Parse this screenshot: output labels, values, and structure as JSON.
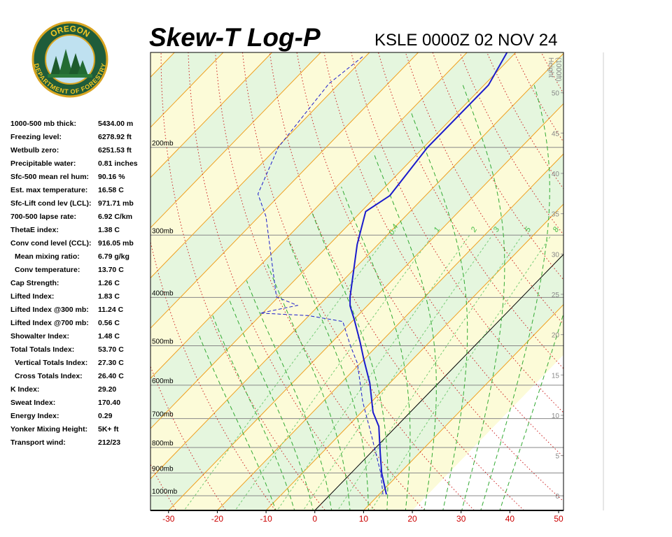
{
  "logo": {
    "top": "OREGON",
    "bottom": "DEPARTMENT OF FORESTRY"
  },
  "table": {
    "rows": [
      [
        "1000-500 mb thick:",
        "5434.00 m"
      ],
      [
        "Freezing level:",
        "6278.92 ft"
      ],
      [
        "Wetbulb zero:",
        "6251.53 ft"
      ],
      [
        "Precipitable water:",
        "0.81 inches"
      ],
      [
        "Sfc-500 mean rel hum:",
        "90.16 %"
      ],
      [
        "Est. max temperature:",
        "16.58 C"
      ],
      [
        "Sfc-Lift cond lev (LCL):",
        "971.71 mb"
      ],
      [
        "700-500 lapse rate:",
        "6.92 C/km"
      ],
      [
        "ThetaE index:",
        "1.38 C"
      ],
      [
        "Conv cond level (CCL):",
        "916.05 mb"
      ],
      [
        "Mean mixing ratio:",
        "6.79 g/kg"
      ],
      [
        "Conv temperature:",
        "13.70 C"
      ],
      [
        "Cap Strength:",
        "1.26 C"
      ],
      [
        "Lifted Index:",
        "1.83 C"
      ],
      [
        "Lifted Index @300 mb:",
        "11.24 C"
      ],
      [
        "Lifted Index @700 mb:",
        "0.56 C"
      ],
      [
        "Showalter Index:",
        "1.48 C"
      ],
      [
        "Total Totals Index:",
        "53.70 C"
      ],
      [
        "Vertical Totals Index:",
        "27.30 C"
      ],
      [
        "Cross Totals Index:",
        "26.40 C"
      ],
      [
        "K Index:",
        "29.20"
      ],
      [
        "Sweat Index:",
        "170.40"
      ],
      [
        "Energy Index:",
        "0.29"
      ],
      [
        "Yonker Mixing Height:",
        "5K+ ft"
      ],
      [
        "Transport wind:",
        "212/23"
      ]
    ]
  },
  "chart_data": {
    "type": "skew-t",
    "title": "Skew-T Log-P",
    "subtitle": "KSLE 0000Z 02 NOV 24",
    "xlim": [
      -33.7,
      51
    ],
    "xticks": [
      -30,
      -20,
      -10,
      0,
      10,
      20,
      30,
      40,
      50
    ],
    "ylim": [
      1070,
      129
    ],
    "log_y": true,
    "yticks": [
      {
        "value": 1000,
        "label": "1000mb"
      },
      {
        "value": 900,
        "label": "900mb"
      },
      {
        "value": 800,
        "label": "800mb"
      },
      {
        "value": 700,
        "label": "700mb"
      },
      {
        "value": 600,
        "label": "600mb"
      },
      {
        "value": 500,
        "label": "500mb"
      },
      {
        "value": 400,
        "label": "400mb"
      },
      {
        "value": 300,
        "label": "300mb"
      },
      {
        "value": 200,
        "label": "200mb"
      }
    ],
    "y2label": [
      "Height",
      "(1000ft)"
    ],
    "y2lim": [
      -1.8,
      55
    ],
    "y2ticks": [
      0,
      5,
      10,
      15,
      20,
      25,
      30,
      35,
      40,
      45,
      50
    ],
    "mixing_ratio_labels": [
      0.4,
      1,
      2,
      3,
      5,
      8
    ],
    "series": [
      {
        "color": "#1a1acc",
        "dash": false,
        "pressure": [
          994,
          899,
          821,
          726,
          680,
          594,
          534,
          492,
          444,
          416,
          399,
          313,
          269,
          250,
          200,
          150,
          129
        ],
        "values": [
          11.5,
          6.2,
          2.0,
          -3.6,
          -7.6,
          -14.1,
          -19.9,
          -24.2,
          -29.8,
          -33.5,
          -35.3,
          -44.3,
          -49.1,
          -47.3,
          -49.2,
          -49.1,
          -51.8
        ]
      },
      {
        "color": "#1a1acc",
        "dash": true,
        "pressure": [
          994,
          899,
          750,
          648,
          542,
          500,
          447,
          435,
          430,
          415,
          399,
          275,
          248,
          200,
          149,
          131
        ],
        "values": [
          10.8,
          6.0,
          -3.8,
          -11.8,
          -20.6,
          -25.5,
          -31.9,
          -40.2,
          -50.5,
          -44.4,
          -50.4,
          -68.6,
          -74.7,
          -79.8,
          -82.1,
          -80.5
        ]
      }
    ]
  }
}
